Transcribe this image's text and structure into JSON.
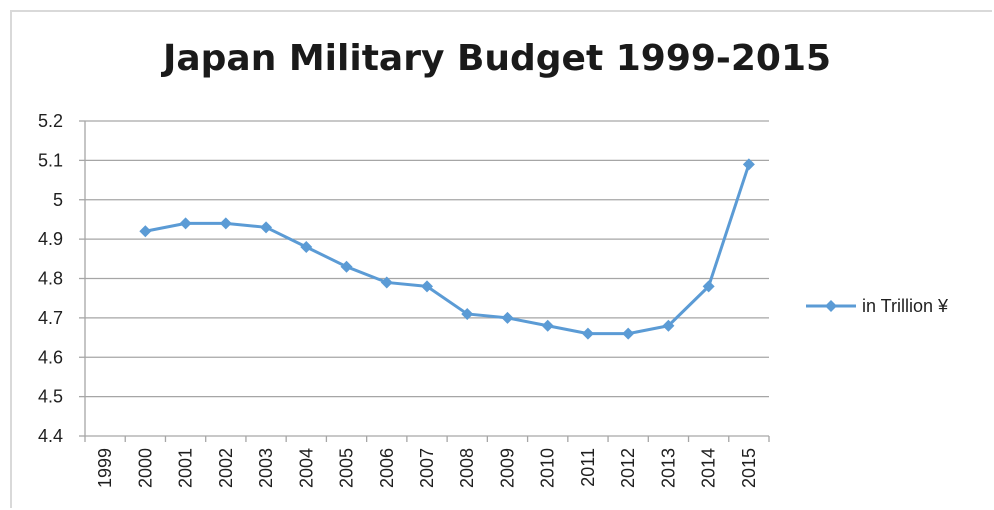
{
  "chart_data": {
    "type": "line",
    "title": "Japan Military Budget 1999-2015",
    "xlabel": "",
    "ylabel": "",
    "categories": [
      "1999",
      "2000",
      "2001",
      "2002",
      "2003",
      "2004",
      "2005",
      "2006",
      "2007",
      "2008",
      "2009",
      "2010",
      "2011",
      "2012",
      "2013",
      "2014",
      "2015"
    ],
    "series": [
      {
        "name": "in Trillion ¥",
        "values": [
          null,
          4.92,
          4.94,
          4.94,
          4.93,
          4.88,
          4.83,
          4.79,
          4.78,
          4.71,
          4.7,
          4.68,
          4.66,
          4.66,
          4.68,
          4.78,
          5.09
        ]
      }
    ],
    "ylim": [
      4.4,
      5.2
    ],
    "yticks": [
      "4.4",
      "4.5",
      "4.6",
      "4.7",
      "4.8",
      "4.9",
      "5",
      "5.1",
      "5.2"
    ],
    "grid": true,
    "legend_position": "right",
    "colors": {
      "series": "#5b9bd5",
      "grid": "#a6a6a6",
      "axis": "#a6a6a6"
    }
  }
}
